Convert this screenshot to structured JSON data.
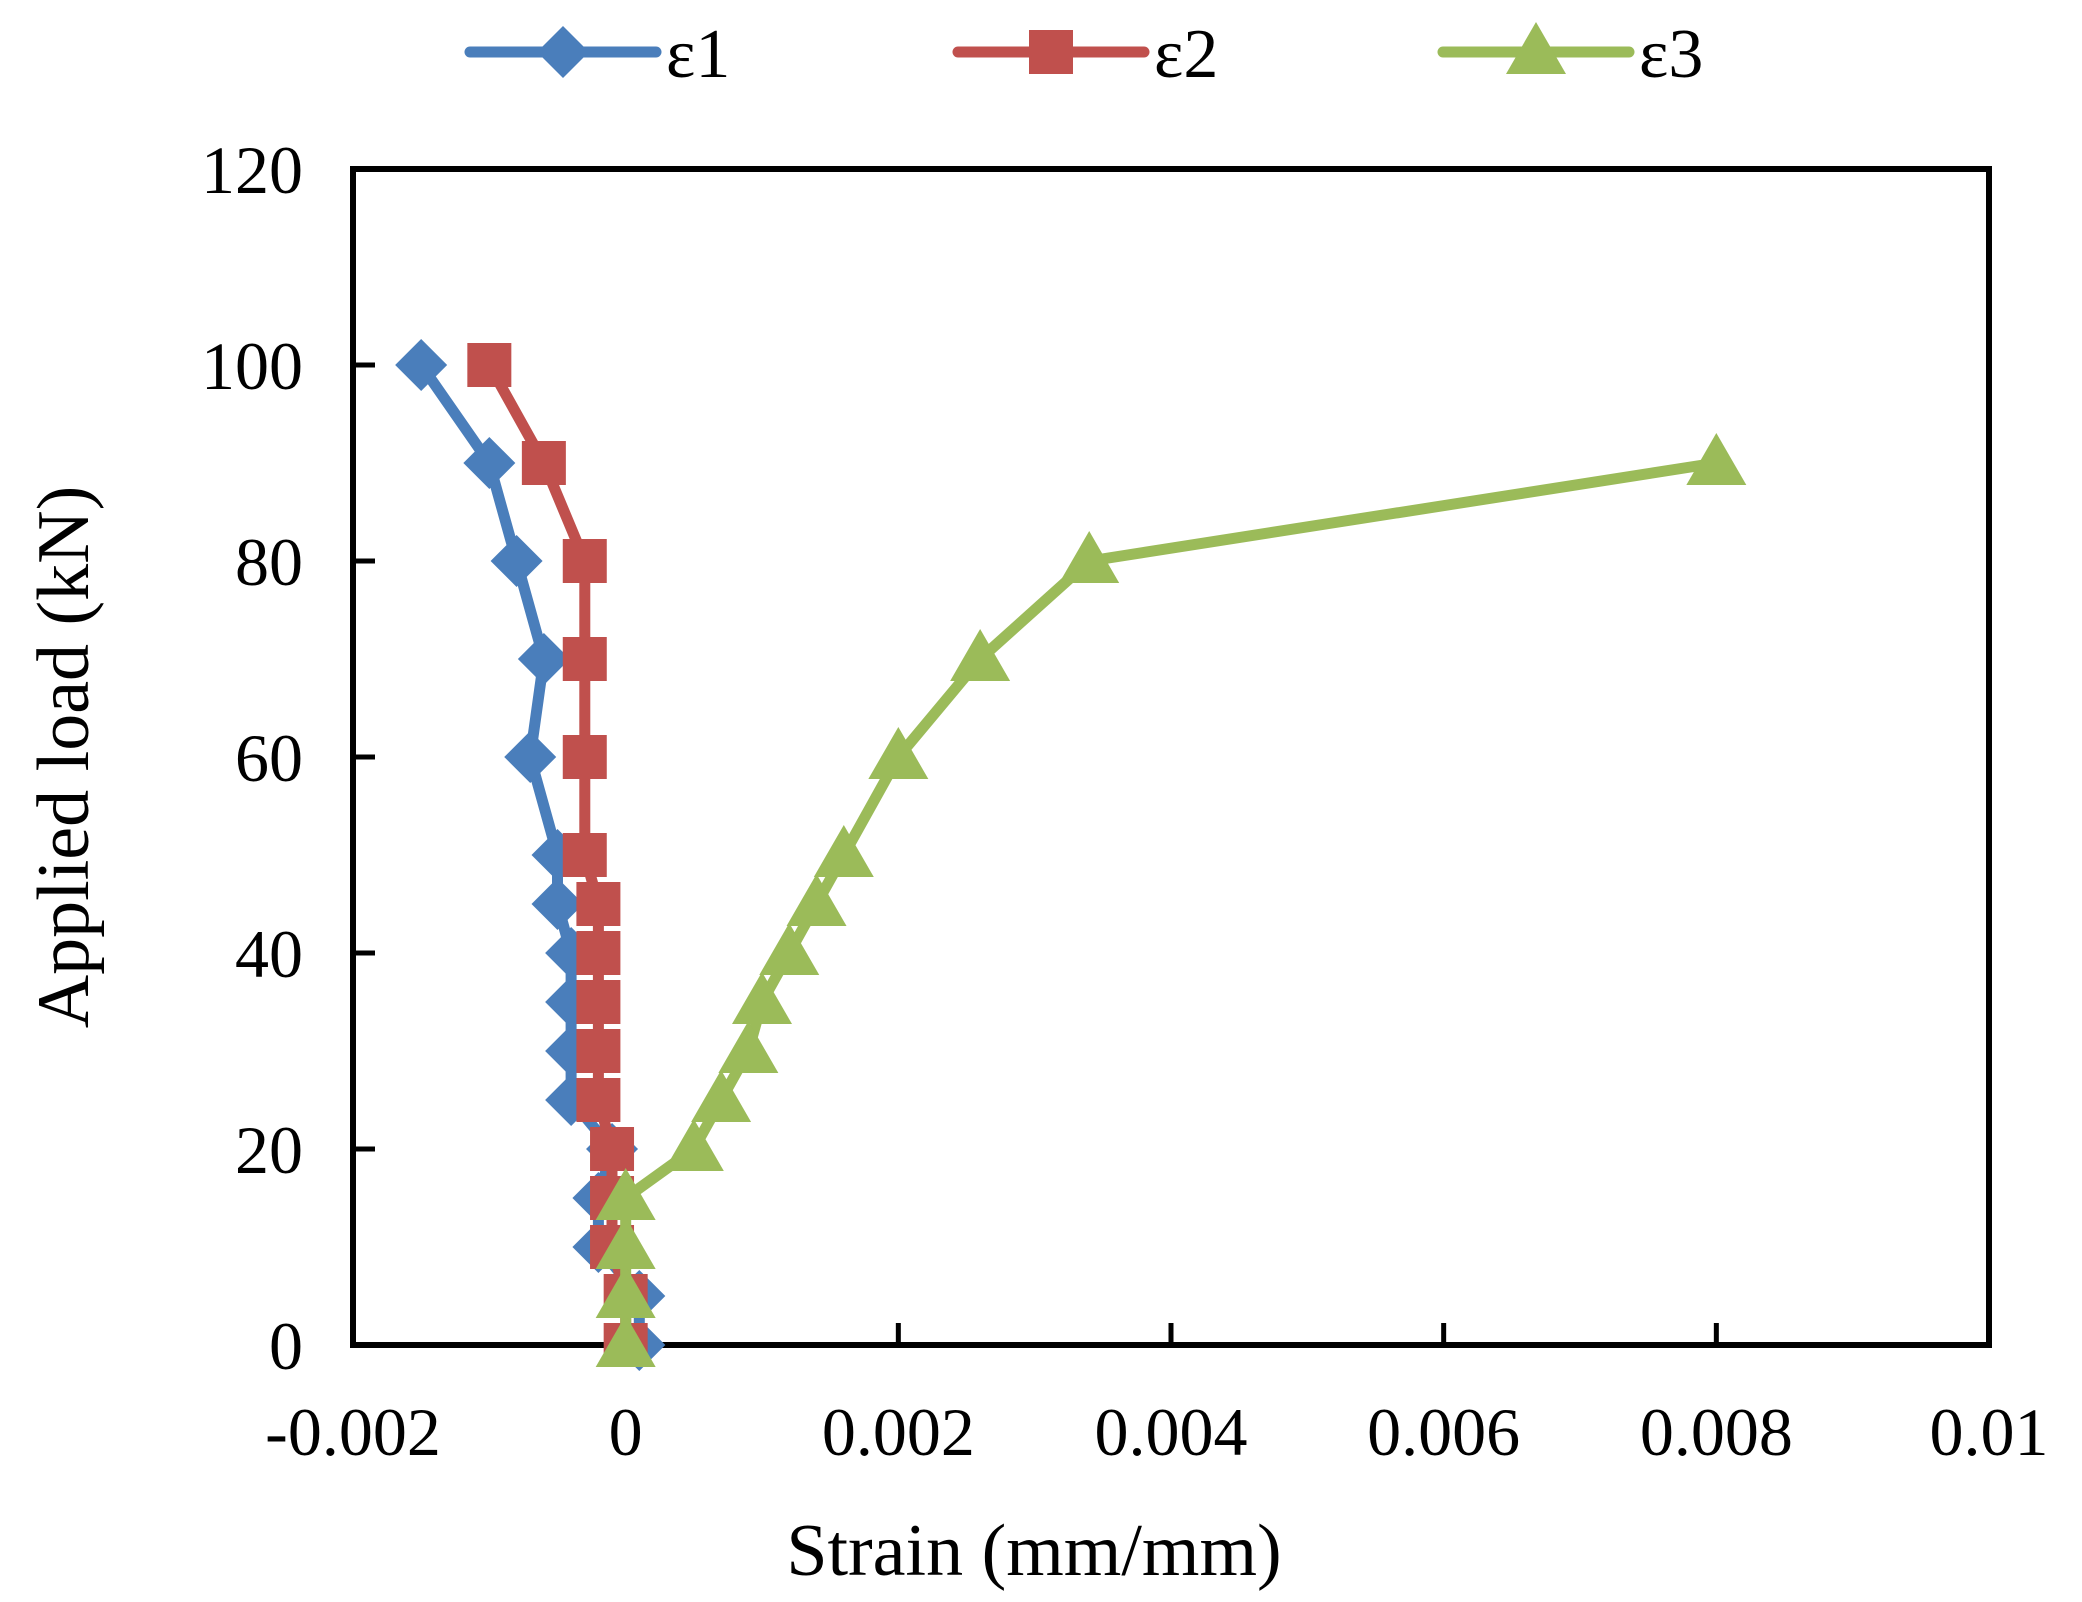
{
  "chart_data": {
    "type": "line",
    "title": "",
    "xlabel": "Strain (mm/mm)",
    "ylabel": "Applied load (kN)",
    "xlim": [
      -0.002,
      0.01
    ],
    "ylim": [
      0,
      120
    ],
    "x_ticks": [
      -0.002,
      0,
      0.002,
      0.004,
      0.006,
      0.008,
      0.01
    ],
    "x_tick_labels": [
      "-0.002",
      "0",
      "0.002",
      "0.004",
      "0.006",
      "0.008",
      "0.01"
    ],
    "y_ticks": [
      0,
      20,
      40,
      60,
      80,
      100,
      120
    ],
    "y_tick_labels": [
      "0",
      "20",
      "40",
      "60",
      "80",
      "100",
      "120"
    ],
    "grid": false,
    "legend_position": "top",
    "series": [
      {
        "name": "ε1",
        "color": "#4a7ebb",
        "marker": "diamond",
        "points": [
          [
            0.0001,
            0
          ],
          [
            0.0001,
            5
          ],
          [
            -0.0002,
            10
          ],
          [
            -0.0002,
            15
          ],
          [
            -0.0001,
            20
          ],
          [
            -0.0004,
            25
          ],
          [
            -0.0004,
            30
          ],
          [
            -0.0004,
            35
          ],
          [
            -0.0004,
            40
          ],
          [
            -0.0005,
            45
          ],
          [
            -0.0005,
            50
          ],
          [
            -0.0007,
            60
          ],
          [
            -0.0006,
            70
          ],
          [
            -0.0008,
            80
          ],
          [
            -0.001,
            90
          ],
          [
            -0.0015,
            100
          ]
        ]
      },
      {
        "name": "ε2",
        "color": "#c0504d",
        "marker": "square",
        "points": [
          [
            0.0,
            0
          ],
          [
            0.0,
            5
          ],
          [
            -0.0001,
            10
          ],
          [
            -0.0001,
            15
          ],
          [
            -0.0001,
            20
          ],
          [
            -0.0002,
            25
          ],
          [
            -0.0002,
            30
          ],
          [
            -0.0002,
            35
          ],
          [
            -0.0002,
            40
          ],
          [
            -0.0002,
            45
          ],
          [
            -0.0003,
            50
          ],
          [
            -0.0003,
            60
          ],
          [
            -0.0003,
            70
          ],
          [
            -0.0003,
            80
          ],
          [
            -0.0006,
            90
          ],
          [
            -0.001,
            100
          ]
        ]
      },
      {
        "name": "ε3",
        "color": "#9bbb59",
        "marker": "triangle",
        "points": [
          [
            0.0,
            0
          ],
          [
            0.0,
            5
          ],
          [
            0.0,
            10
          ],
          [
            0.0,
            15
          ],
          [
            0.0005,
            20
          ],
          [
            0.0007,
            25
          ],
          [
            0.0009,
            30
          ],
          [
            0.001,
            35
          ],
          [
            0.0012,
            40
          ],
          [
            0.0014,
            45
          ],
          [
            0.0016,
            50
          ],
          [
            0.002,
            60
          ],
          [
            0.0026,
            70
          ],
          [
            0.0034,
            80
          ],
          [
            0.008,
            90
          ]
        ]
      }
    ]
  }
}
